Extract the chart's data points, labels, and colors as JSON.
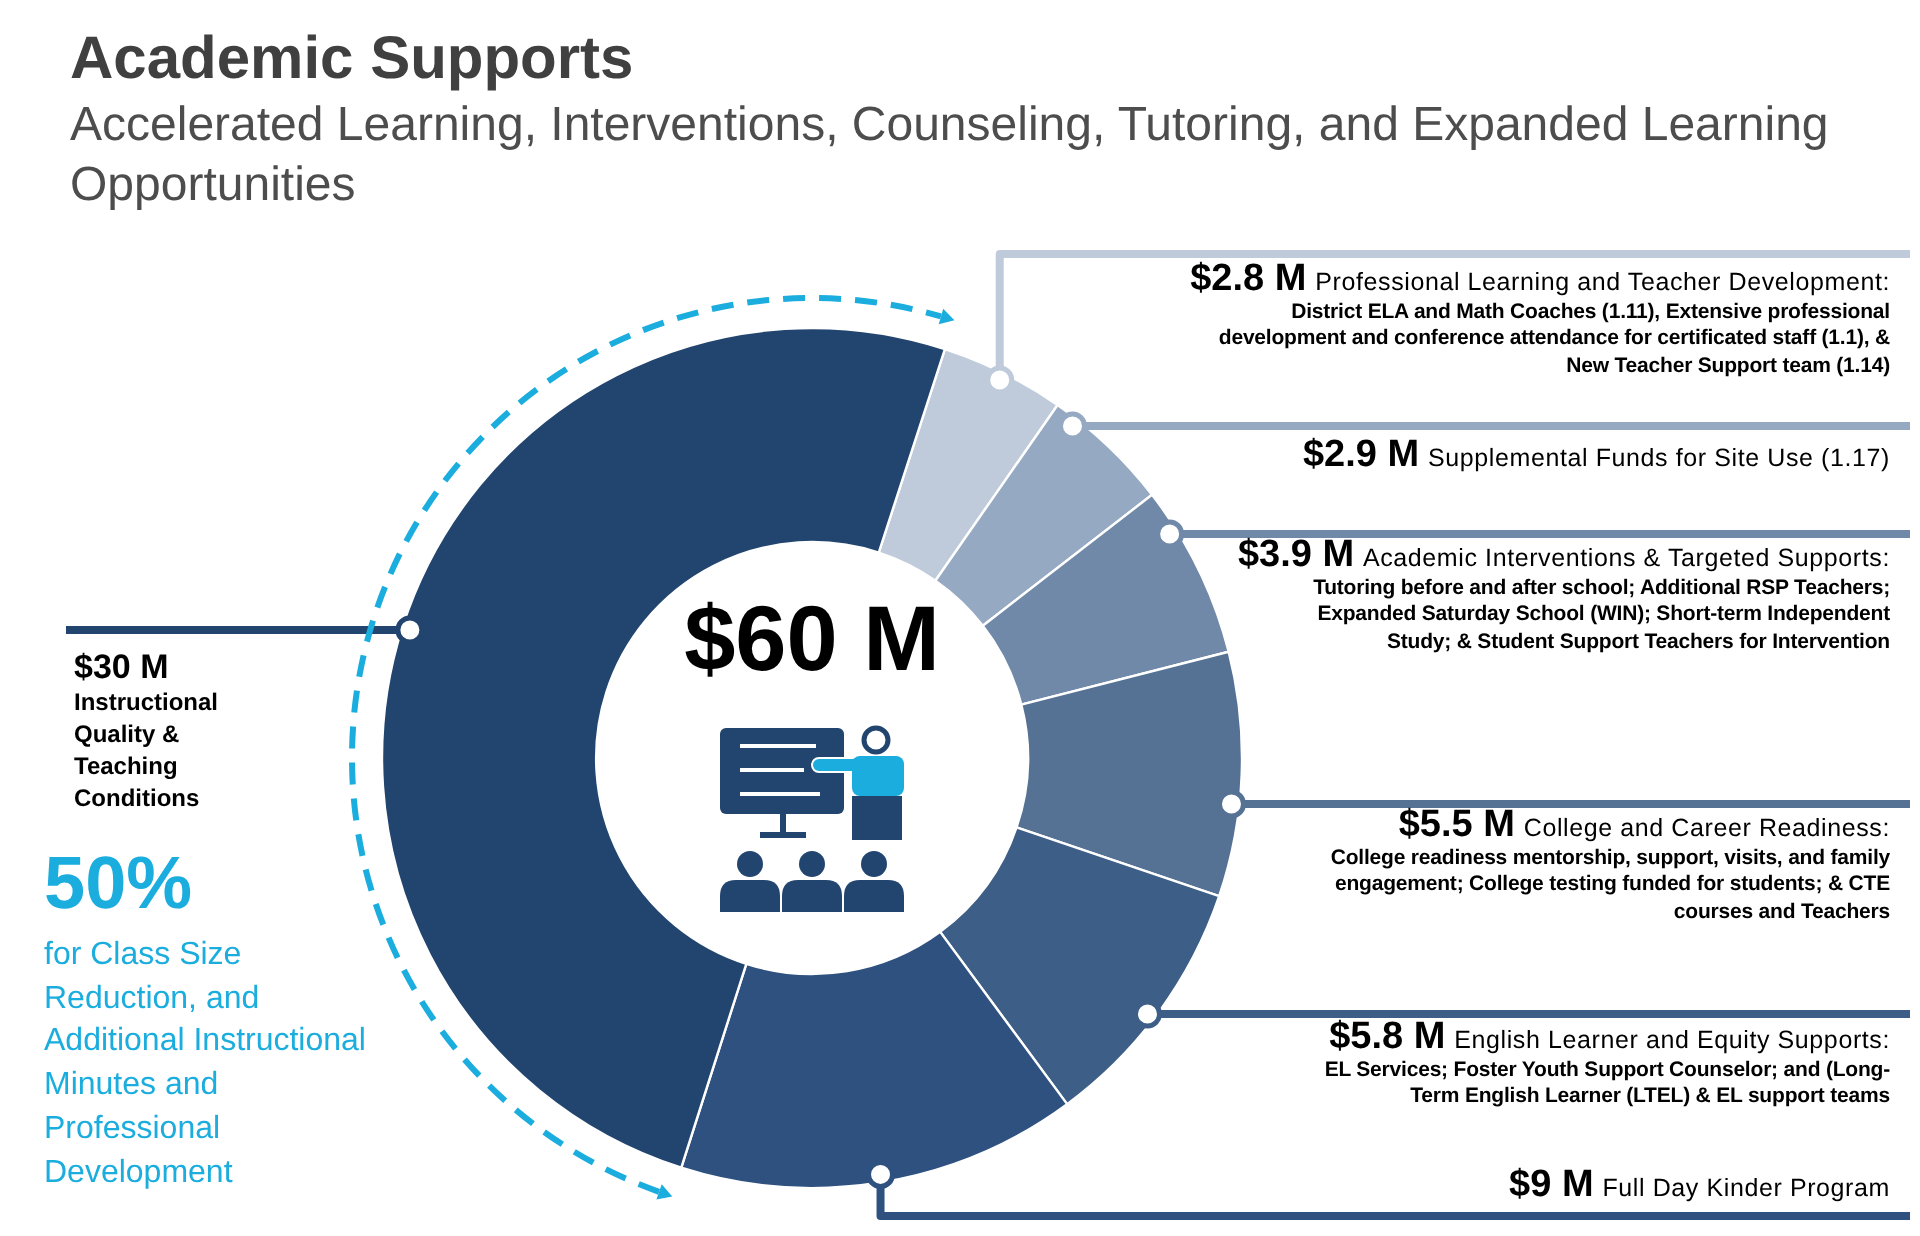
{
  "chart_data": {
    "type": "donut",
    "title": "Academic Supports",
    "subtitle": "Accelerated Learning, Interventions, Counseling, Tutoring, and Expanded Learning Opportunities",
    "categories": [
      "Professional Learning and Teacher Development: District ELA and Math Coaches (1.11), Extensive professional development and conference attendance for certificated staff (1.1), & New Teacher Support team (1.14)",
      "Supplemental Funds for Site Use (1.17)",
      "Academic Interventions & Targeted Supports: Tutoring before and after school; Additional RSP Teachers; Expanded Saturday School (WIN); Short-term Independent Study; & Student Support Teachers for Intervention",
      "College and Career Readiness: College readiness mentorship, support, visits, and family engagement; College testing funded for students; & CTE courses and Teachers",
      "English Learner and Equity Supports: EL Services; Foster Youth Support Counselor; and (Long-Term English Learner (LTEL) & EL support teams",
      "Full Day Kinder Program",
      "Instructional Quality & Teaching Conditions"
    ],
    "values": [
      2.8,
      2.9,
      3.9,
      5.5,
      5.8,
      9,
      30
    ],
    "colors": [
      "#bfcbdb",
      "#95a9c2",
      "#7089a8",
      "#557295",
      "#3d5e86",
      "#2e5180",
      "#22456f"
    ],
    "value_labels": [
      "$2.8 M",
      "$2.9 M",
      "$3.9 M",
      "$5.5 M",
      "$5.8 M",
      "$9 M",
      "$30 M"
    ],
    "annotations": [
      "$60 M",
      "50%",
      "for Class Size Reduction, and Additional Instructional Minutes and Professional Development"
    ]
  }
}
